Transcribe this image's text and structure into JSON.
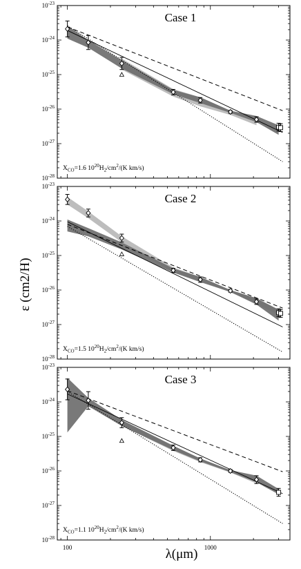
{
  "figure": {
    "ylabel": "ε (cm2/H)",
    "xlabel": "λ(μm)"
  },
  "chart_data": [
    {
      "type": "line",
      "title": "Case 1",
      "annotation": "X_CO=1.6 10^20 H2/cm2/(K km/s)",
      "annotation_parts": {
        "prefix": "X",
        "sub1": "CO",
        "mid": "=1.6 10",
        "sup": "20",
        "rest1": "H",
        "sub2": "2",
        "rest2": "/cm",
        "sup2": "2",
        "rest3": "/(K km/s)"
      },
      "xscale": "log",
      "yscale": "log",
      "xlim": [
        85,
        3600
      ],
      "ylim": [
        1e-28,
        1e-23
      ],
      "x_ticks": [
        100,
        1000
      ],
      "x_tick_labels": [
        "100",
        "1000"
      ],
      "y_ticks": [
        1e-28,
        1e-27,
        1e-26,
        1e-25,
        1e-24,
        1e-23
      ],
      "y_tick_labels": [
        "10-28",
        "10-27",
        "10-26",
        "10-25",
        "10-24",
        "10-23"
      ],
      "observations": {
        "x": [
          100,
          140,
          240,
          550,
          850,
          1380,
          2100,
          3000,
          3100
        ],
        "y": [
          2.1e-24,
          8.5e-25,
          2.1e-25,
          3.1e-26,
          1.8e-26,
          8.3e-27,
          5e-27,
          3e-27,
          2.9e-27
        ],
        "yerr_factor": [
          1.7,
          1.6,
          1.5,
          1.2,
          1.2,
          1.1,
          1.2,
          1.3,
          1.3
        ],
        "markers": [
          "diamond",
          "diamond",
          "diamond",
          "diamond",
          "diamond",
          "diamond",
          "diamond",
          "square",
          "square"
        ]
      },
      "triangle": {
        "x": 240,
        "y": 1e-25
      },
      "band_dark": {
        "x": [
          100,
          140,
          240,
          550,
          850,
          1380,
          2100,
          3000
        ],
        "lower": [
          1.1e-24,
          6e-25,
          1.5e-25,
          2.7e-26,
          1.5e-26,
          7.8e-27,
          4.2e-27,
          1.8e-27
        ],
        "upper": [
          2.6e-24,
          1e-24,
          2.6e-25,
          3.6e-26,
          2.2e-26,
          9e-27,
          6.3e-27,
          3.4e-27
        ]
      },
      "band_light": {
        "x": [
          240,
          550,
          850,
          1380,
          2100
        ],
        "lower": [
          1.4e-25,
          2.3e-26,
          1.2e-26,
          6.8e-27,
          3.4e-27
        ],
        "upper": [
          2.9e-25,
          3.8e-26,
          2.2e-26,
          9e-27,
          5.4e-27
        ]
      },
      "solid_line": {
        "x": [
          100,
          3200
        ],
        "y": [
          1.9e-24,
          2.1e-27
        ]
      },
      "dashed_line": {
        "x": [
          100,
          3200
        ],
        "y": [
          2.4e-24,
          9e-27
        ]
      },
      "dotted_line": {
        "x": [
          100,
          3200
        ],
        "y": [
          2.6e-24,
          3e-28
        ]
      }
    },
    {
      "type": "line",
      "title": "Case 2",
      "annotation": "X_CO=1.5 10^20 H2/cm2/(K km/s)",
      "annotation_parts": {
        "prefix": "X",
        "sub1": "CO",
        "mid": "=1.5 10",
        "sup": "20",
        "rest1": "H",
        "sub2": "2",
        "rest2": "/cm",
        "sup2": "2",
        "rest3": "/(K km/s)"
      },
      "xscale": "log",
      "yscale": "log",
      "xlim": [
        85,
        3600
      ],
      "ylim": [
        1e-28,
        1e-23
      ],
      "x_ticks": [
        100,
        1000
      ],
      "x_tick_labels": [
        "100",
        "1000"
      ],
      "y_ticks": [
        1e-28,
        1e-27,
        1e-26,
        1e-25,
        1e-24,
        1e-23
      ],
      "y_tick_labels": [
        "10-28",
        "10-27",
        "10-26",
        "10-25",
        "10-24",
        "10-23"
      ],
      "observations": {
        "x": [
          100,
          140,
          240,
          550,
          850,
          1380,
          2100,
          3000,
          3100
        ],
        "y": [
          4.2e-24,
          1.7e-24,
          3.2e-25,
          3.7e-26,
          2e-26,
          9.5e-27,
          4.6e-27,
          2.2e-27,
          2.1e-27
        ],
        "yerr_factor": [
          1.4,
          1.3,
          1.3,
          1.15,
          1.2,
          1.1,
          1.2,
          1.3,
          1.3
        ],
        "markers": [
          "diamond",
          "diamond",
          "diamond",
          "diamond",
          "diamond",
          "diamond",
          "diamond",
          "square",
          "square"
        ]
      },
      "triangle": {
        "x": 240,
        "y": 1.1e-25
      },
      "band_dark": {
        "x": [
          100,
          140,
          240,
          550,
          850,
          1380,
          2100,
          3000
        ],
        "lower": [
          5e-25,
          3.6e-25,
          1.5e-25,
          3.2e-26,
          1.7e-26,
          8.8e-27,
          3.8e-27,
          1.3e-27
        ],
        "upper": [
          1.1e-24,
          6.2e-25,
          2.4e-25,
          4.2e-26,
          2.4e-26,
          1e-26,
          5.8e-27,
          2.7e-27
        ]
      },
      "band_light": {
        "x": [
          100,
          140,
          240,
          550,
          850,
          1380,
          2100,
          3000
        ],
        "lower": [
          3e-24,
          1.2e-24,
          2.4e-25,
          3.3e-26,
          1.8e-26,
          8.6e-27,
          4e-27,
          1.9e-27
        ],
        "upper": [
          5e-24,
          1.9e-24,
          3.6e-25,
          4.5e-26,
          2.4e-26,
          1e-26,
          5.5e-27,
          2.7e-27
        ]
      },
      "solid_line": {
        "x": [
          100,
          3200
        ],
        "y": [
          9.5e-25,
          8.5e-28
        ]
      },
      "dashed_line": {
        "x": [
          100,
          3200
        ],
        "y": [
          8e-25,
          3e-27
        ]
      },
      "dotted_line": {
        "x": [
          100,
          3200
        ],
        "y": [
          7e-25,
          1.6e-28
        ]
      }
    },
    {
      "type": "line",
      "title": "Case 3",
      "annotation": "X_CO=1.1 10^20 H2/cm2/(K km/s)",
      "annotation_parts": {
        "prefix": "X",
        "sub1": "CO",
        "mid": "=1.1 10",
        "sup": "20",
        "rest1": "H",
        "sub2": "2",
        "rest2": "/cm",
        "sup2": "2",
        "rest3": "/(K km/s)"
      },
      "xscale": "log",
      "yscale": "log",
      "xlim": [
        85,
        3600
      ],
      "ylim": [
        1e-28,
        1e-23
      ],
      "x_ticks": [
        100,
        1000
      ],
      "x_tick_labels": [
        "100",
        "1000"
      ],
      "y_ticks": [
        1e-28,
        1e-27,
        1e-26,
        1e-25,
        1e-24,
        1e-23
      ],
      "y_tick_labels": [
        "10-28",
        "10-27",
        "10-26",
        "10-25",
        "10-24",
        "10-23"
      ],
      "observations": {
        "x": [
          100,
          140,
          240,
          550,
          850,
          1380,
          2100,
          3000
        ],
        "y": [
          2.3e-24,
          1.1e-24,
          2.5e-25,
          4.7e-26,
          2.1e-26,
          1e-26,
          5.6e-27,
          2.4e-27
        ],
        "yerr_factor": [
          2.0,
          1.8,
          1.4,
          1.2,
          1.15,
          1.1,
          1.3,
          1.3
        ],
        "markers": [
          "diamond",
          "diamond",
          "diamond",
          "diamond",
          "diamond",
          "diamond",
          "diamond",
          "square"
        ]
      },
      "triangle": {
        "x": 240,
        "y": 7.5e-26
      },
      "band_dark": {
        "x": [
          100,
          140,
          240,
          550,
          850,
          1380,
          2100,
          3000
        ],
        "lower": [
          1.3e-25,
          7.5e-25,
          2e-25,
          4e-26,
          1.9e-26,
          9.2e-27,
          4.7e-27,
          2.1e-27
        ],
        "upper": [
          5e-24,
          1.3e-24,
          3e-25,
          5.4e-26,
          2.3e-26,
          1.05e-26,
          7.3e-27,
          3e-27
        ]
      },
      "band_light": {
        "x": [
          240,
          550,
          850,
          1380,
          2100
        ],
        "lower": [
          2e-25,
          3.8e-26,
          1.8e-26,
          9e-27,
          4.3e-27
        ],
        "upper": [
          2.9e-25,
          5.2e-26,
          2.3e-26,
          1.05e-26,
          6e-27
        ]
      },
      "solid_line": {
        "x": [
          100,
          3200
        ],
        "y": [
          1.7e-24,
          2.2e-27
        ]
      },
      "dashed_line": {
        "x": [
          100,
          3200
        ],
        "y": [
          2.1e-24,
          9.5e-27
        ]
      },
      "dotted_line": {
        "x": [
          100,
          3200
        ],
        "y": [
          2e-24,
          3e-28
        ]
      }
    }
  ]
}
